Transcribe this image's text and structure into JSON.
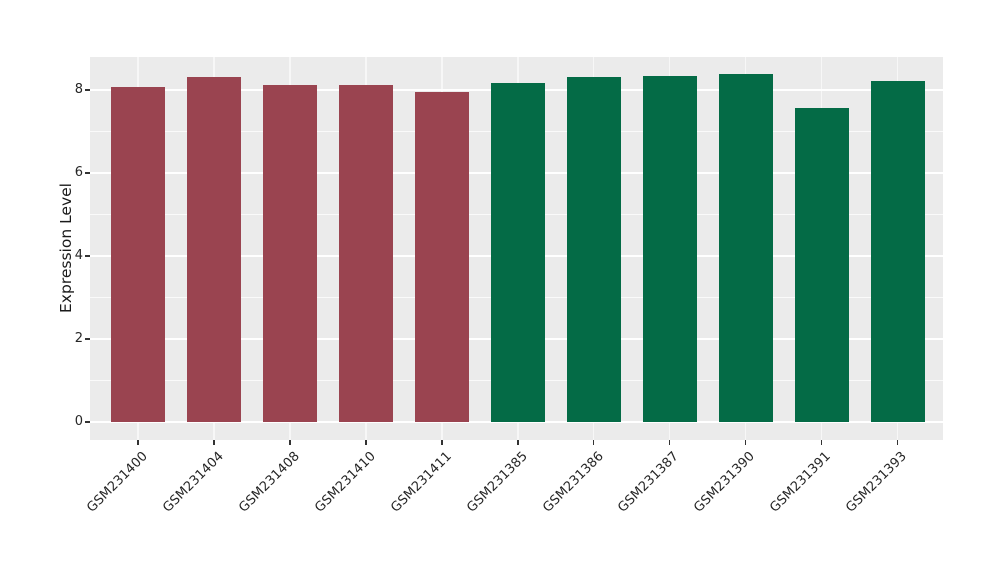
{
  "chart_data": {
    "type": "bar",
    "title": "",
    "ylabel": "Expression Level",
    "categories": [
      "GSM231400",
      "GSM231404",
      "GSM231408",
      "GSM231410",
      "GSM231411",
      "GSM231385",
      "GSM231386",
      "GSM231387",
      "GSM231390",
      "GSM231391",
      "GSM231393"
    ],
    "values": [
      8.07,
      8.31,
      8.12,
      8.12,
      7.94,
      8.18,
      8.31,
      8.33,
      8.39,
      7.56,
      8.21
    ],
    "bar_colors": [
      "#9A4450",
      "#9A4450",
      "#9A4450",
      "#9A4450",
      "#9A4450",
      "#046B46",
      "#046B46",
      "#046B46",
      "#046B46",
      "#046B46",
      "#046B46"
    ],
    "yticks": [
      0,
      2,
      4,
      6,
      8
    ],
    "minor_yticks": [
      1,
      3,
      5,
      7
    ],
    "ylim": [
      0,
      8.8
    ],
    "x_tick_rotation": 45,
    "grid": "white horizontal major+minor lines and vertical line per category on gray panel",
    "legend": "none"
  },
  "colors": {
    "bar_red": "#9A4450",
    "bar_green": "#046B46",
    "panel_bg": "#EBEBEB",
    "grid": "#FFFFFF",
    "tick": "#333333",
    "text": "#262626",
    "figure_bg": "#FFFFFF"
  }
}
